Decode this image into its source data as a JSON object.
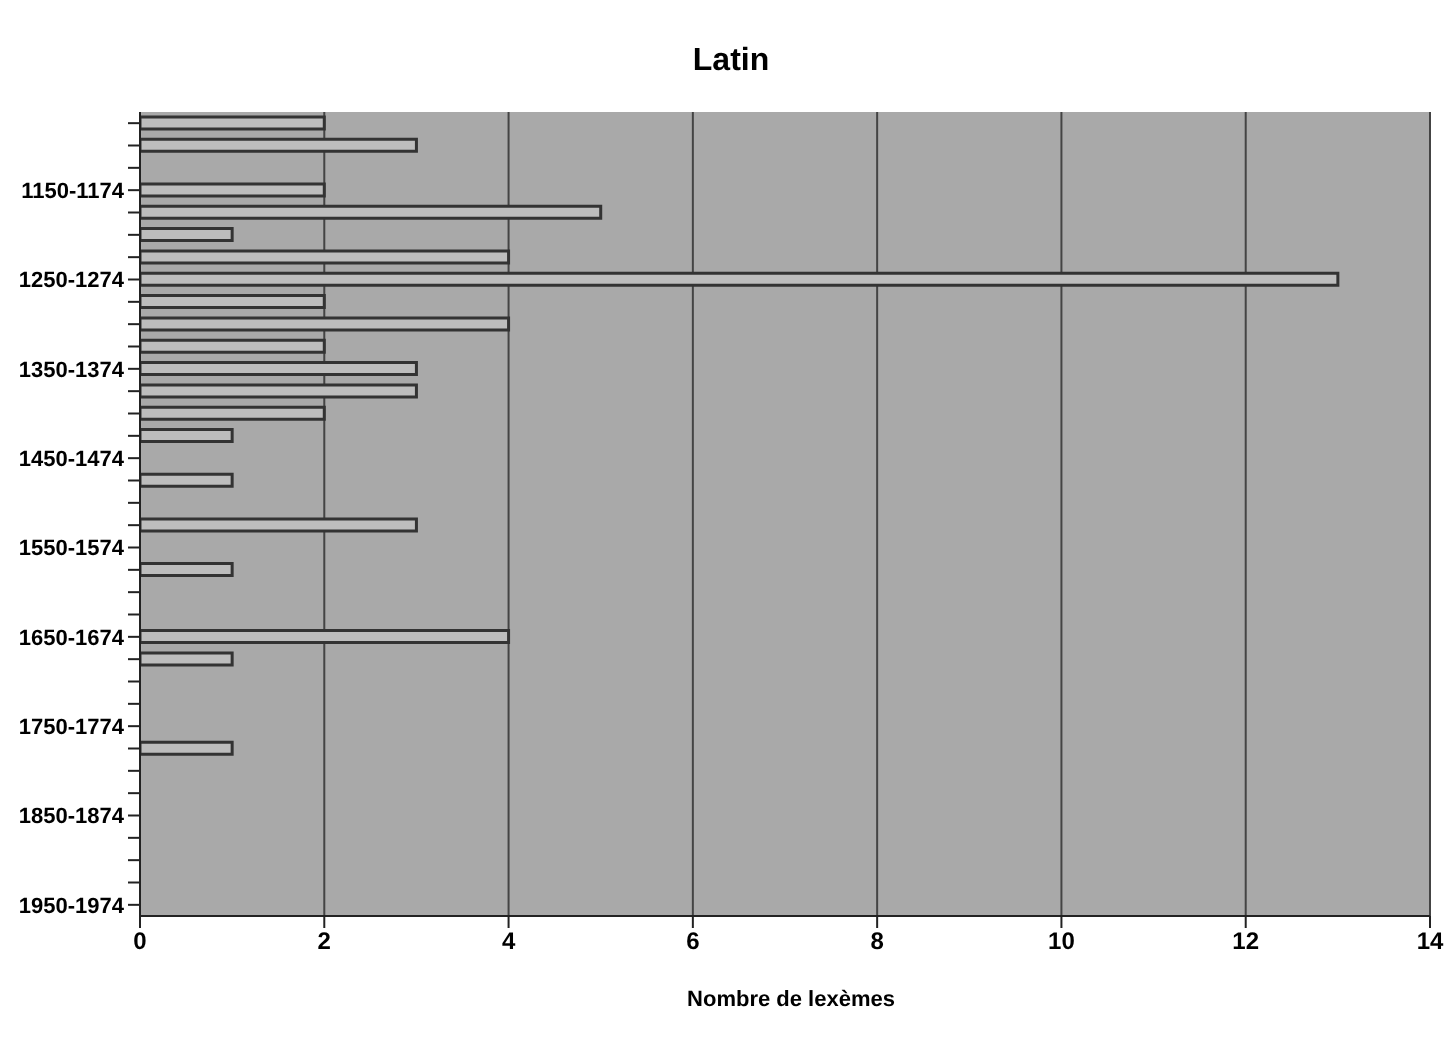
{
  "chart_data": {
    "type": "bar",
    "orientation": "horizontal",
    "title": "Latin",
    "xlabel": "Nombre de lexèmes",
    "categories": [
      null,
      null,
      null,
      "1150-1174",
      null,
      null,
      null,
      "1250-1274",
      null,
      null,
      null,
      "1350-1374",
      null,
      null,
      null,
      "1450-1474",
      null,
      null,
      null,
      "1550-1574",
      null,
      null,
      null,
      "1650-1674",
      null,
      null,
      null,
      "1750-1774",
      null,
      null,
      null,
      "1850-1874",
      null,
      null,
      null,
      "1950-1974"
    ],
    "values": [
      2,
      3,
      0,
      2,
      5,
      1,
      4,
      13,
      2,
      4,
      2,
      3,
      3,
      2,
      1,
      0,
      1,
      0,
      3,
      0,
      1,
      0,
      0,
      4,
      1,
      0,
      0,
      0,
      1,
      0,
      0,
      0,
      0,
      0,
      0,
      0
    ],
    "color": "#bdbdbd",
    "xlim": [
      0,
      14
    ],
    "xticks": [
      0,
      2,
      4,
      6,
      8,
      10,
      12,
      14
    ],
    "grid": "x"
  }
}
